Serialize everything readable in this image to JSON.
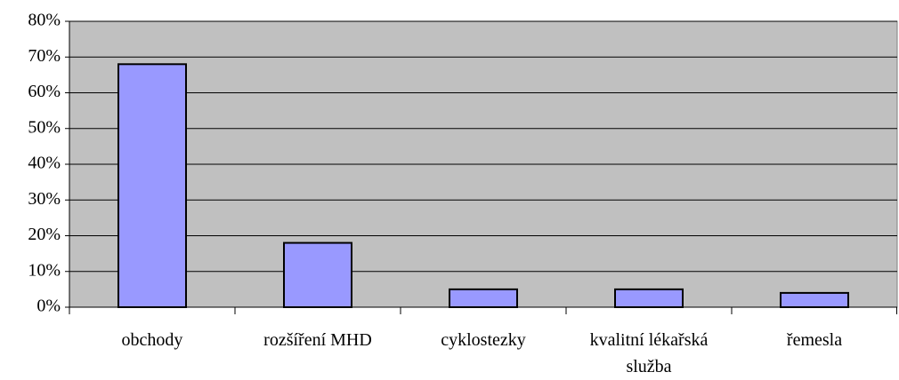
{
  "chart_data": {
    "type": "bar",
    "categories": [
      "obchody",
      "rozšíření MHD",
      "cyklostezky",
      "kvalitní lékařská služba",
      "řemesla"
    ],
    "values": [
      68,
      18,
      5,
      5,
      4
    ],
    "color": "#9999ff",
    "ylim": [
      0,
      80
    ],
    "yticks": [
      {
        "value": 0,
        "label": "0%"
      },
      {
        "value": 10,
        "label": "10%"
      },
      {
        "value": 20,
        "label": "20%"
      },
      {
        "value": 30,
        "label": "30%"
      },
      {
        "value": 40,
        "label": "40%"
      },
      {
        "value": 50,
        "label": "50%"
      },
      {
        "value": 60,
        "label": "60%"
      },
      {
        "value": 70,
        "label": "70%"
      },
      {
        "value": 80,
        "label": "80%"
      }
    ],
    "grid": true
  }
}
